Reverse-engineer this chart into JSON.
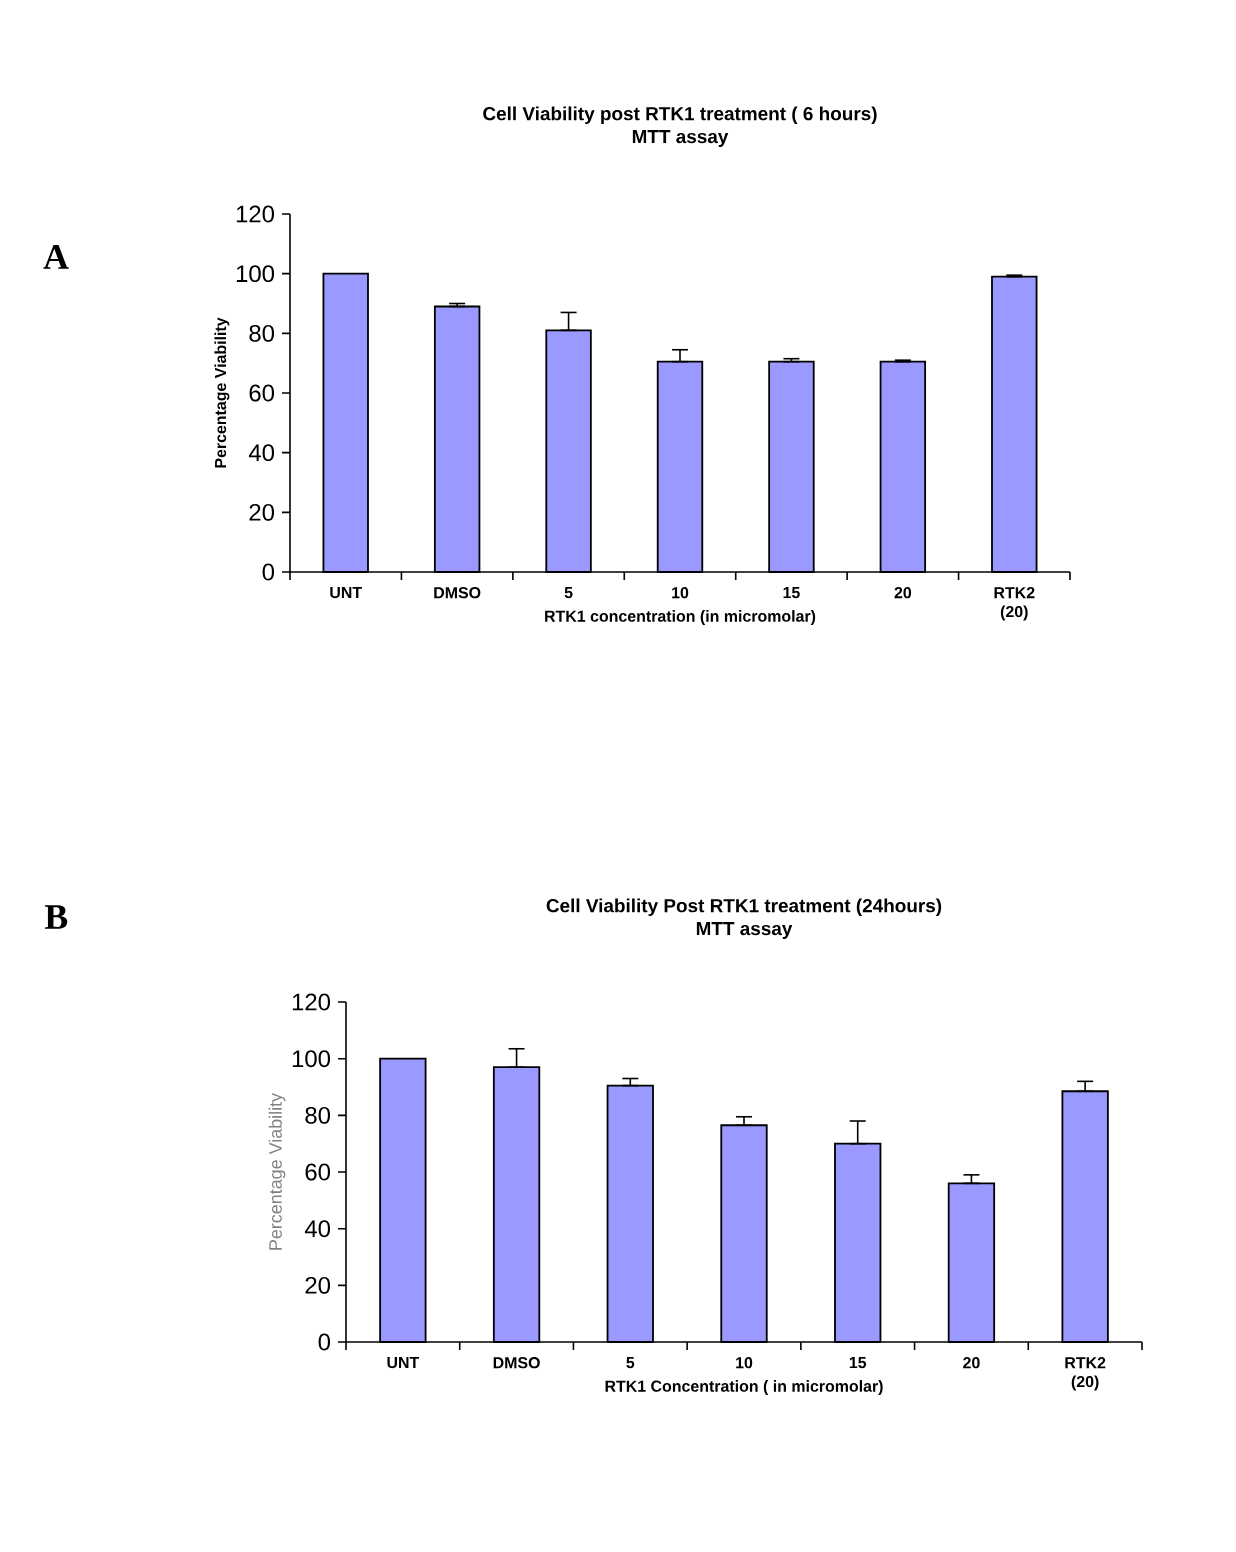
{
  "chart_data": [
    {
      "type": "bar",
      "title": "Cell Viability post RTK1 treatment ( 6 hours)",
      "subtitle": "MTT assay",
      "xlabel": "RTK1 concentration  (in micromolar)",
      "ylabel": "Percentage Viability",
      "categories": [
        "UNT",
        "DMSO",
        "5",
        "10",
        "15",
        "20",
        "RTK2 (20)"
      ],
      "values": [
        100,
        89,
        81,
        70.5,
        70.5,
        70.5,
        99
      ],
      "errors": [
        null,
        [
          89,
          90
        ],
        [
          81,
          87
        ],
        [
          70.5,
          74.5
        ],
        [
          70.5,
          71.5
        ],
        [
          70.5,
          71
        ],
        [
          99,
          99.5
        ]
      ],
      "color": "#9999ff",
      "ylim": [
        0,
        120
      ],
      "yticks": [
        0,
        20,
        40,
        60,
        80,
        100,
        120
      ],
      "annotations": [
        "A"
      ]
    },
    {
      "type": "bar",
      "title": "Cell Viability Post RTK1 treatment (24hours)",
      "subtitle": "MTT assay",
      "xlabel": "RTK1 Concentration ( in micromolar)",
      "ylabel": "Percentage Viability",
      "categories": [
        "UNT",
        "DMSO",
        "5",
        "10",
        "15",
        "20",
        "RTK2 (20)"
      ],
      "values": [
        100,
        97,
        90.5,
        76.5,
        70,
        56,
        88.5
      ],
      "errors": [
        null,
        [
          97,
          103.5
        ],
        [
          90.5,
          93
        ],
        [
          76.5,
          79.5
        ],
        [
          70,
          78
        ],
        [
          56,
          59
        ],
        [
          88.5,
          92
        ]
      ],
      "color": "#9999ff",
      "ylim": [
        0,
        120
      ],
      "yticks": [
        0,
        20,
        40,
        60,
        80,
        100,
        120
      ],
      "annotations": [
        "B"
      ]
    }
  ]
}
